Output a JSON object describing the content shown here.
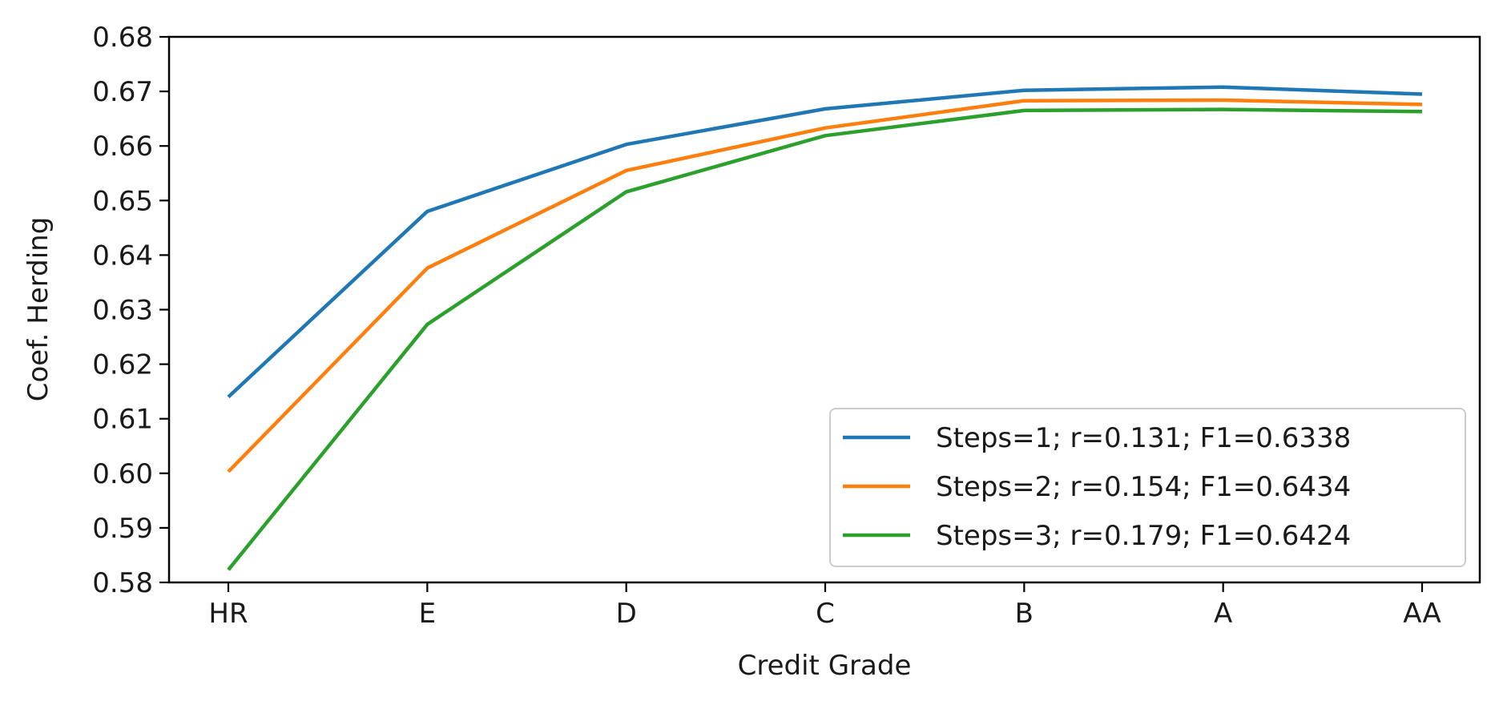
{
  "chart_data": {
    "type": "line",
    "title": "",
    "xlabel": "Credit Grade",
    "ylabel": "Coef. Herding",
    "categories": [
      "HR",
      "E",
      "D",
      "C",
      "B",
      "A",
      "AA"
    ],
    "ylim": [
      0.58,
      0.68
    ],
    "yticks": [
      0.58,
      0.59,
      0.6,
      0.61,
      0.62,
      0.63,
      0.64,
      0.65,
      0.66,
      0.67,
      0.68
    ],
    "ytick_labels": [
      "0.58",
      "0.59",
      "0.60",
      "0.61",
      "0.62",
      "0.63",
      "0.64",
      "0.65",
      "0.66",
      "0.67",
      "0.68"
    ],
    "grid": false,
    "legend_position": "bottom-right",
    "series": [
      {
        "name": "Steps=1; r=0.131; F1=0.6338",
        "color": "#1f77b4",
        "values": [
          0.614,
          0.648,
          0.6603,
          0.6668,
          0.6702,
          0.6708,
          0.6695
        ]
      },
      {
        "name": "Steps=2; r=0.154; F1=0.6434",
        "color": "#ff7f0e",
        "values": [
          0.6003,
          0.6376,
          0.6555,
          0.6633,
          0.6683,
          0.6684,
          0.6676
        ]
      },
      {
        "name": "Steps=3; r=0.179; F1=0.6424",
        "color": "#2ca02c",
        "values": [
          0.5823,
          0.6273,
          0.6516,
          0.6619,
          0.6665,
          0.6667,
          0.6663
        ]
      }
    ]
  }
}
